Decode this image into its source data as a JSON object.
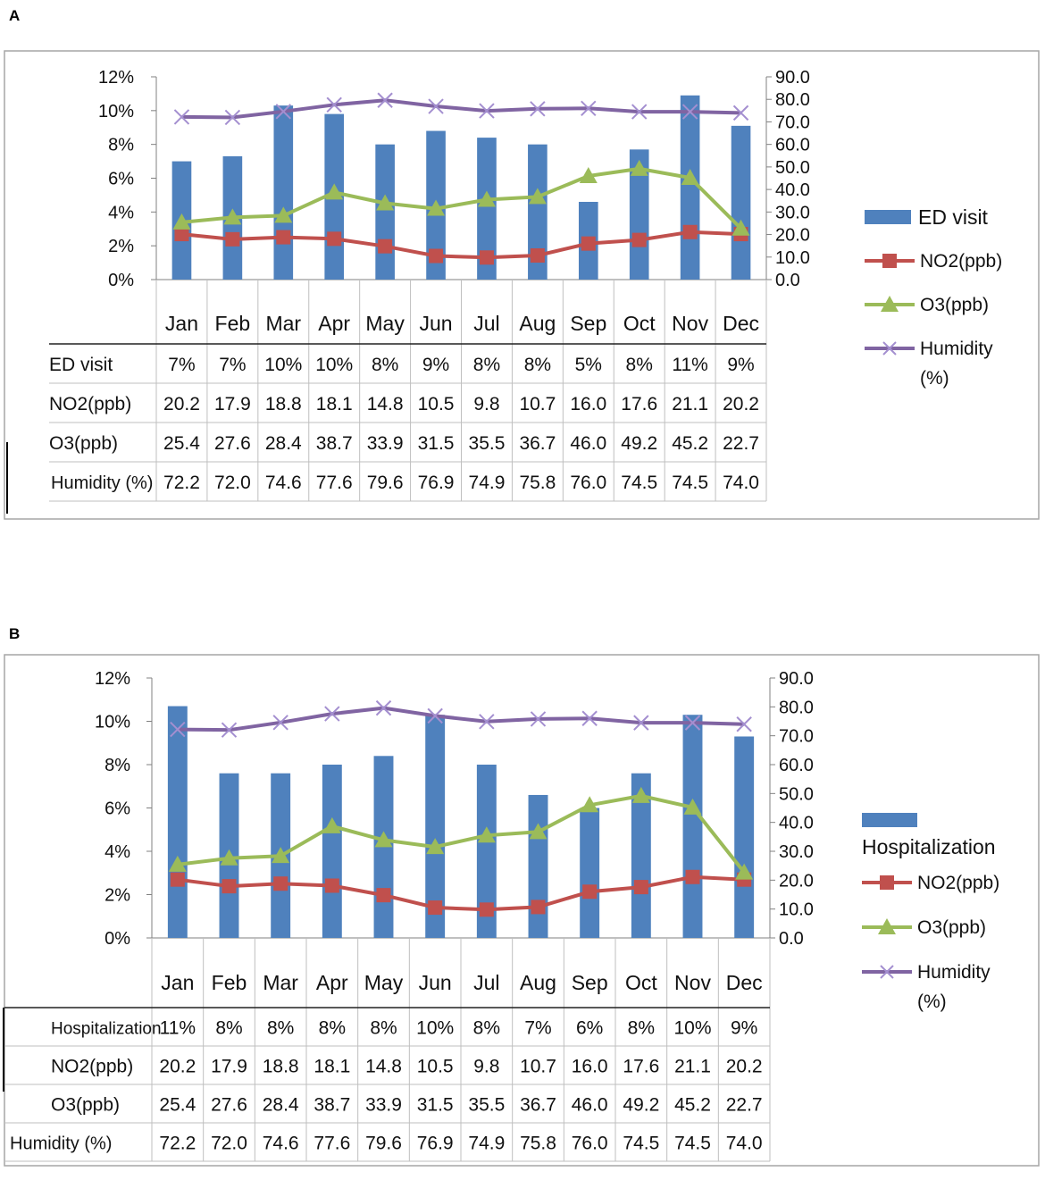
{
  "panels": {
    "a": {
      "letter": "A"
    },
    "b": {
      "letter": "B"
    }
  },
  "colors": {
    "bar": "#4f81bd",
    "no2": "#c0504d",
    "o3": "#9bbb59",
    "humidity": "#8064a2",
    "grid": "#bfbfbf",
    "frame": "#a6a6a6"
  },
  "chart_data": [
    {
      "type": "bar",
      "panel": "A",
      "categories": [
        "Jan",
        "Feb",
        "Mar",
        "Apr",
        "May",
        "Jun",
        "Jul",
        "Aug",
        "Sep",
        "Oct",
        "Nov",
        "Dec"
      ],
      "left_axis": {
        "ylim": [
          0,
          12
        ],
        "ticks": [
          "0%",
          "2%",
          "4%",
          "6%",
          "8%",
          "10%",
          "12%"
        ]
      },
      "right_axis": {
        "ylim": [
          0,
          90
        ],
        "ticks": [
          "0.0",
          "10.0",
          "20.0",
          "30.0",
          "40.0",
          "50.0",
          "60.0",
          "70.0",
          "80.0",
          "90.0"
        ]
      },
      "bar_series": {
        "name": "ED visit",
        "values": [
          7.0,
          7.3,
          10.3,
          9.8,
          8.0,
          8.8,
          8.4,
          8.0,
          4.6,
          7.7,
          10.9,
          9.1
        ]
      },
      "line_series": [
        {
          "name": "NO2(ppb)",
          "marker": "square",
          "values": [
            20.2,
            17.9,
            18.8,
            18.1,
            14.8,
            10.5,
            9.8,
            10.7,
            16.0,
            17.6,
            21.1,
            20.2
          ]
        },
        {
          "name": "O3(ppb)",
          "marker": "triangle",
          "values": [
            25.4,
            27.6,
            28.4,
            38.7,
            33.9,
            31.5,
            35.5,
            36.7,
            46.0,
            49.2,
            45.2,
            22.7
          ]
        },
        {
          "name": "Humidity",
          "marker": "x",
          "values": [
            72.2,
            72.0,
            74.6,
            77.6,
            79.6,
            76.9,
            74.9,
            75.8,
            76.0,
            74.5,
            74.5,
            74.0
          ]
        }
      ],
      "legend": {
        "position": "right",
        "items": [
          {
            "label": "ED visit",
            "label2": ""
          },
          {
            "label": "NO2(ppb)",
            "label2": ""
          },
          {
            "label": "O3(ppb)",
            "label2": ""
          },
          {
            "label": "Humidity",
            "label2": "(%)"
          }
        ]
      },
      "table": {
        "row_labels": [
          "ED visit",
          "NO2(ppb)",
          "O3(ppb)",
          "Humidity (%)"
        ],
        "rows": [
          [
            "7%",
            "7%",
            "10%",
            "10%",
            "8%",
            "9%",
            "8%",
            "8%",
            "5%",
            "8%",
            "11%",
            "9%"
          ],
          [
            "20.2",
            "17.9",
            "18.8",
            "18.1",
            "14.8",
            "10.5",
            "9.8",
            "10.7",
            "16.0",
            "17.6",
            "21.1",
            "20.2"
          ],
          [
            "25.4",
            "27.6",
            "28.4",
            "38.7",
            "33.9",
            "31.5",
            "35.5",
            "36.7",
            "46.0",
            "49.2",
            "45.2",
            "22.7"
          ],
          [
            "72.2",
            "72.0",
            "74.6",
            "77.6",
            "79.6",
            "76.9",
            "74.9",
            "75.8",
            "76.0",
            "74.5",
            "74.5",
            "74.0"
          ]
        ]
      }
    },
    {
      "type": "bar",
      "panel": "B",
      "categories": [
        "Jan",
        "Feb",
        "Mar",
        "Apr",
        "May",
        "Jun",
        "Jul",
        "Aug",
        "Sep",
        "Oct",
        "Nov",
        "Dec"
      ],
      "left_axis": {
        "ylim": [
          0,
          12
        ],
        "ticks": [
          "0%",
          "2%",
          "4%",
          "6%",
          "8%",
          "10%",
          "12%"
        ]
      },
      "right_axis": {
        "ylim": [
          0,
          90
        ],
        "ticks": [
          "0.0",
          "10.0",
          "20.0",
          "30.0",
          "40.0",
          "50.0",
          "60.0",
          "70.0",
          "80.0",
          "90.0"
        ]
      },
      "bar_series": {
        "name": "Hospitalization",
        "values": [
          10.7,
          7.6,
          7.6,
          8.0,
          8.4,
          10.3,
          8.0,
          6.6,
          6.0,
          7.6,
          10.3,
          9.3
        ]
      },
      "line_series": [
        {
          "name": "NO2(ppb)",
          "marker": "square",
          "values": [
            20.2,
            17.9,
            18.8,
            18.1,
            14.8,
            10.5,
            9.8,
            10.7,
            16.0,
            17.6,
            21.1,
            20.2
          ]
        },
        {
          "name": "O3(ppb)",
          "marker": "triangle",
          "values": [
            25.4,
            27.6,
            28.4,
            38.7,
            33.9,
            31.5,
            35.5,
            36.7,
            46.0,
            49.2,
            45.2,
            22.7
          ]
        },
        {
          "name": "Humidity",
          "marker": "x",
          "values": [
            72.2,
            72.0,
            74.6,
            77.6,
            79.6,
            76.9,
            74.9,
            75.8,
            76.0,
            74.5,
            74.5,
            74.0
          ]
        }
      ],
      "legend": {
        "position": "right",
        "items": [
          {
            "label": "Hospitalization",
            "label2": ""
          },
          {
            "label": "NO2(ppb)",
            "label2": ""
          },
          {
            "label": "O3(ppb)",
            "label2": ""
          },
          {
            "label": "Humidity",
            "label2": "(%)"
          }
        ]
      },
      "table": {
        "row_labels": [
          "Hospitalization",
          "NO2(ppb)",
          "O3(ppb)",
          "Humidity (%)"
        ],
        "rows": [
          [
            "11%",
            "8%",
            "8%",
            "8%",
            "8%",
            "10%",
            "8%",
            "7%",
            "6%",
            "8%",
            "10%",
            "9%"
          ],
          [
            "20.2",
            "17.9",
            "18.8",
            "18.1",
            "14.8",
            "10.5",
            "9.8",
            "10.7",
            "16.0",
            "17.6",
            "21.1",
            "20.2"
          ],
          [
            "25.4",
            "27.6",
            "28.4",
            "38.7",
            "33.9",
            "31.5",
            "35.5",
            "36.7",
            "46.0",
            "49.2",
            "45.2",
            "22.7"
          ],
          [
            "72.2",
            "72.0",
            "74.6",
            "77.6",
            "79.6",
            "76.9",
            "74.9",
            "75.8",
            "76.0",
            "74.5",
            "74.5",
            "74.0"
          ]
        ]
      }
    }
  ]
}
